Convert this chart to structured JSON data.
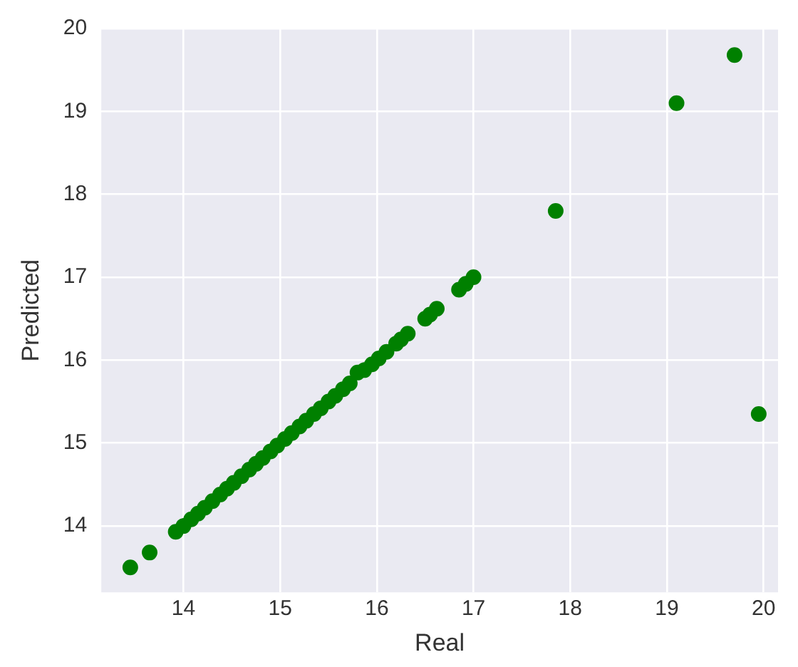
{
  "chart_data": {
    "type": "scatter",
    "xlabel": "Real",
    "ylabel": "Predicted",
    "marker": "circle",
    "grid": true,
    "xlim": [
      13.15,
      20.15
    ],
    "xticks": [
      14,
      15,
      16,
      17,
      18,
      19,
      20
    ],
    "ylim": [
      13.2,
      20
    ],
    "yticks": [
      14,
      15,
      16,
      17,
      18,
      19,
      20
    ],
    "series": [
      {
        "color": "#008000",
        "x": [
          13.45,
          13.65,
          13.92,
          14.0,
          14.08,
          14.15,
          14.22,
          14.3,
          14.38,
          14.45,
          14.52,
          14.6,
          14.68,
          14.75,
          14.82,
          14.9,
          14.97,
          15.05,
          15.12,
          15.2,
          15.27,
          15.35,
          15.42,
          15.5,
          15.57,
          15.65,
          15.72,
          15.8,
          15.87,
          15.95,
          16.02,
          16.1,
          16.2,
          16.25,
          16.32,
          16.5,
          16.55,
          16.62,
          16.85,
          16.92,
          17.0,
          17.85,
          19.1,
          19.7,
          19.95
        ],
        "values": [
          13.5,
          13.68,
          13.93,
          14.0,
          14.08,
          14.15,
          14.22,
          14.3,
          14.38,
          14.45,
          14.52,
          14.6,
          14.68,
          14.75,
          14.82,
          14.9,
          14.97,
          15.05,
          15.12,
          15.2,
          15.27,
          15.35,
          15.42,
          15.5,
          15.57,
          15.65,
          15.72,
          15.85,
          15.88,
          15.95,
          16.02,
          16.1,
          16.2,
          16.25,
          16.32,
          16.5,
          16.55,
          16.62,
          16.85,
          16.92,
          17.0,
          17.8,
          19.1,
          19.68,
          15.35
        ]
      }
    ]
  }
}
